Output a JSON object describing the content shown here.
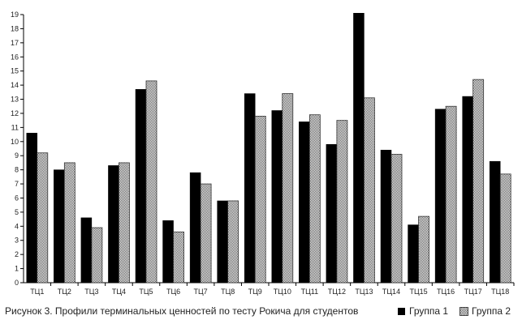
{
  "caption": "Рисунок 3. Профили терминальных ценностей по тесту Рокича для студентов",
  "chart_data": {
    "type": "bar",
    "categories": [
      "ТЦ1",
      "ТЦ2",
      "ТЦ3",
      "ТЦ4",
      "ТЦ5",
      "ТЦ6",
      "ТЦ7",
      "ТЦ8",
      "ТЦ9",
      "ТЦ10",
      "ТЦ11",
      "ТЦ12",
      "ТЦ13",
      "ТЦ14",
      "ТЦ15",
      "ТЦ16",
      "ТЦ17",
      "ТЦ18"
    ],
    "series": [
      {
        "name": "Группа 1",
        "color": "#000000",
        "values": [
          10.6,
          8.0,
          4.6,
          8.3,
          13.7,
          4.4,
          7.8,
          5.8,
          13.4,
          12.2,
          11.4,
          9.8,
          19.1,
          9.4,
          4.1,
          12.3,
          13.2,
          8.6
        ]
      },
      {
        "name": "Группа 2",
        "color": "#9a9a9a",
        "values": [
          9.2,
          8.5,
          3.9,
          8.5,
          14.3,
          3.6,
          7.0,
          5.8,
          11.8,
          13.4,
          11.9,
          11.5,
          13.1,
          9.1,
          4.7,
          12.5,
          14.4,
          7.7
        ]
      }
    ],
    "ylim": [
      0,
      19
    ],
    "yticks": [
      0,
      1,
      2,
      3,
      4,
      5,
      6,
      7,
      8,
      9,
      10,
      11,
      12,
      13,
      14,
      15,
      16,
      17,
      18,
      19
    ],
    "legend": "bottom-right",
    "grid": false
  }
}
